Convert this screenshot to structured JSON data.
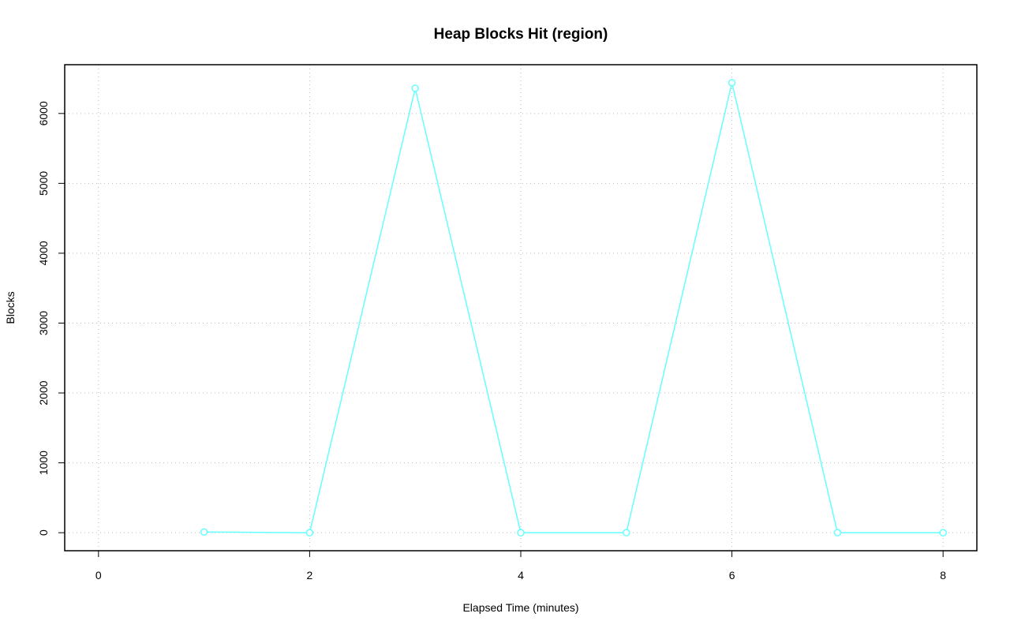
{
  "chart_data": {
    "type": "line",
    "title": "Heap Blocks Hit (region)",
    "xlabel": "Elapsed Time (minutes)",
    "ylabel": "Blocks",
    "x": [
      1,
      2,
      3,
      4,
      5,
      6,
      7,
      8
    ],
    "series": [
      {
        "color": "#66ffff",
        "values": [
          10,
          0,
          6360,
          0,
          0,
          6440,
          0,
          0
        ]
      }
    ],
    "xlim": [
      -0.32,
      8.32
    ],
    "ylim": [
      -258,
      6698
    ],
    "xticks": [
      0,
      2,
      4,
      6,
      8
    ],
    "yticks": [
      0,
      1000,
      2000,
      3000,
      4000,
      5000,
      6000
    ],
    "grid": true
  }
}
